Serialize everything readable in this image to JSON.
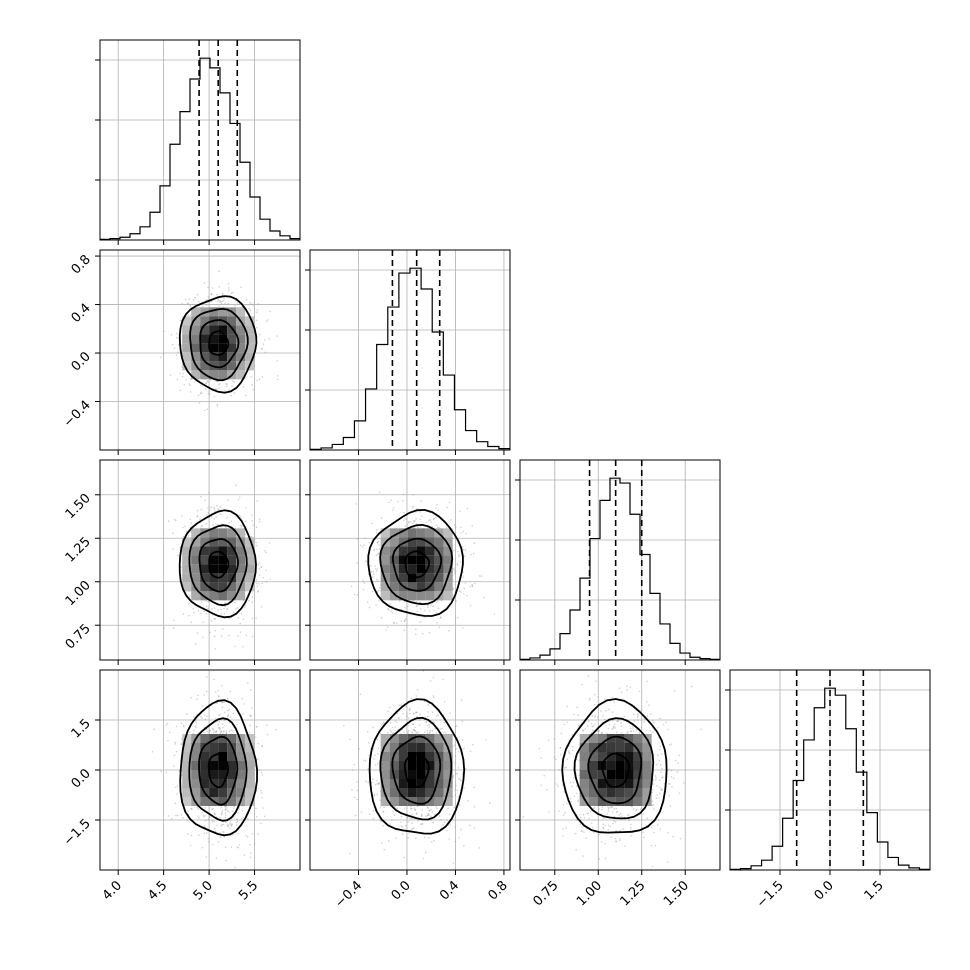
{
  "chart_data": {
    "type": "corner",
    "grid": true,
    "parameters": [
      {
        "range": [
          3.8,
          6.0
        ],
        "ticks": [
          4.0,
          4.5,
          5.0,
          5.5
        ],
        "tick_labels": [
          "4.0",
          "4.5",
          "5.0",
          "5.5"
        ],
        "quantiles": [
          4.89,
          5.1,
          5.31
        ],
        "histogram": [
          1,
          2,
          4,
          9,
          19,
          40,
          78,
          138,
          185,
          232,
          262,
          248,
          212,
          168,
          112,
          62,
          30,
          13,
          6,
          2
        ]
      },
      {
        "range": [
          -0.8,
          0.85
        ],
        "ticks": [
          -0.4,
          0.0,
          0.4,
          0.8
        ],
        "tick_labels": [
          "−0.4",
          "0.0",
          "0.4",
          "0.8"
        ],
        "quantiles": [
          -0.12,
          0.08,
          0.27
        ],
        "histogram": [
          1,
          3,
          8,
          18,
          42,
          88,
          152,
          206,
          255,
          262,
          232,
          170,
          108,
          58,
          28,
          12,
          5,
          2
        ]
      },
      {
        "range": [
          0.55,
          1.7
        ],
        "ticks": [
          0.75,
          1.0,
          1.25,
          1.5
        ],
        "tick_labels": [
          "0.75",
          "1.00",
          "1.25",
          "1.50"
        ],
        "quantiles": [
          0.95,
          1.1,
          1.25
        ],
        "histogram": [
          1,
          3,
          7,
          16,
          38,
          72,
          118,
          175,
          230,
          262,
          255,
          210,
          152,
          96,
          52,
          24,
          10,
          4,
          2,
          1
        ]
      },
      {
        "range": [
          -3.0,
          3.0
        ],
        "ticks": [
          -1.5,
          0.0,
          1.5
        ],
        "tick_labels": [
          "−1.5",
          "0.0",
          "1.5"
        ],
        "quantiles": [
          -1.0,
          0.0,
          1.0
        ],
        "histogram": [
          1,
          2,
          6,
          14,
          34,
          74,
          128,
          186,
          232,
          260,
          250,
          202,
          140,
          82,
          40,
          18,
          7,
          3,
          1
        ]
      }
    ],
    "y_ticks": [
      null,
      {
        "ticks": [
          -0.4,
          0.0,
          0.4,
          0.8
        ],
        "tick_labels": [
          "−0.4",
          "0.0",
          "0.4",
          "0.8"
        ]
      },
      {
        "ticks": [
          0.75,
          1.0,
          1.25,
          1.5
        ],
        "tick_labels": [
          "0.75",
          "1.00",
          "1.25",
          "1.50"
        ]
      },
      {
        "ticks": [
          -1.5,
          0.0,
          1.5
        ],
        "tick_labels": [
          "−1.5",
          "0.0",
          "1.5"
        ]
      }
    ],
    "correlations": {
      "rho_10": 0.0,
      "rho_20": 0.0,
      "rho_21": 0.0,
      "rho_30": 0.0,
      "rho_31": 0.0,
      "rho_32": 0.0
    },
    "contour_levels_sigma": [
      0.5,
      1.0,
      1.5,
      2.0
    ],
    "point_color": "#9a9a9a",
    "line_color": "#000000"
  }
}
